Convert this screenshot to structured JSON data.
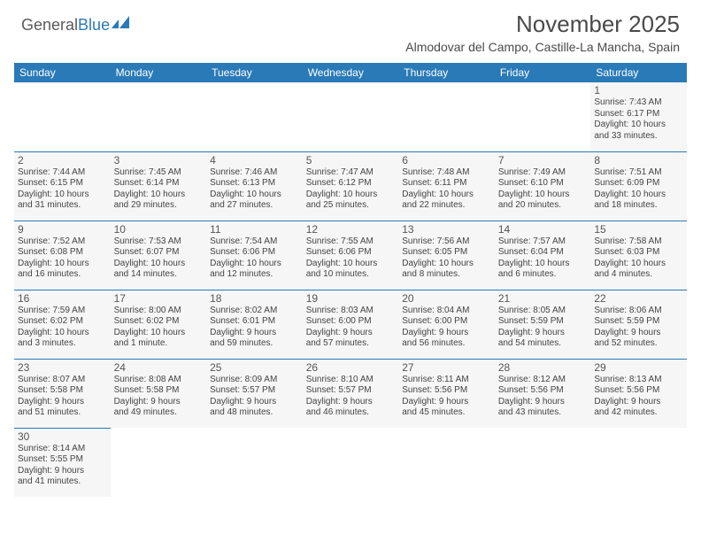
{
  "logo": {
    "text1": "General",
    "text2": "Blue"
  },
  "title": "November 2025",
  "location": "Almodovar del Campo, Castille-La Mancha, Spain",
  "colors": {
    "header_bg": "#2a7ab8",
    "header_fg": "#ffffff",
    "cell_bg": "#f6f6f6",
    "border": "#2a7ab8",
    "text": "#444444"
  },
  "day_headers": [
    "Sunday",
    "Monday",
    "Tuesday",
    "Wednesday",
    "Thursday",
    "Friday",
    "Saturday"
  ],
  "weeks": [
    [
      null,
      null,
      null,
      null,
      null,
      null,
      {
        "n": "1",
        "sr": "Sunrise: 7:43 AM",
        "ss": "Sunset: 6:17 PM",
        "d1": "Daylight: 10 hours",
        "d2": "and 33 minutes."
      }
    ],
    [
      {
        "n": "2",
        "sr": "Sunrise: 7:44 AM",
        "ss": "Sunset: 6:15 PM",
        "d1": "Daylight: 10 hours",
        "d2": "and 31 minutes."
      },
      {
        "n": "3",
        "sr": "Sunrise: 7:45 AM",
        "ss": "Sunset: 6:14 PM",
        "d1": "Daylight: 10 hours",
        "d2": "and 29 minutes."
      },
      {
        "n": "4",
        "sr": "Sunrise: 7:46 AM",
        "ss": "Sunset: 6:13 PM",
        "d1": "Daylight: 10 hours",
        "d2": "and 27 minutes."
      },
      {
        "n": "5",
        "sr": "Sunrise: 7:47 AM",
        "ss": "Sunset: 6:12 PM",
        "d1": "Daylight: 10 hours",
        "d2": "and 25 minutes."
      },
      {
        "n": "6",
        "sr": "Sunrise: 7:48 AM",
        "ss": "Sunset: 6:11 PM",
        "d1": "Daylight: 10 hours",
        "d2": "and 22 minutes."
      },
      {
        "n": "7",
        "sr": "Sunrise: 7:49 AM",
        "ss": "Sunset: 6:10 PM",
        "d1": "Daylight: 10 hours",
        "d2": "and 20 minutes."
      },
      {
        "n": "8",
        "sr": "Sunrise: 7:51 AM",
        "ss": "Sunset: 6:09 PM",
        "d1": "Daylight: 10 hours",
        "d2": "and 18 minutes."
      }
    ],
    [
      {
        "n": "9",
        "sr": "Sunrise: 7:52 AM",
        "ss": "Sunset: 6:08 PM",
        "d1": "Daylight: 10 hours",
        "d2": "and 16 minutes."
      },
      {
        "n": "10",
        "sr": "Sunrise: 7:53 AM",
        "ss": "Sunset: 6:07 PM",
        "d1": "Daylight: 10 hours",
        "d2": "and 14 minutes."
      },
      {
        "n": "11",
        "sr": "Sunrise: 7:54 AM",
        "ss": "Sunset: 6:06 PM",
        "d1": "Daylight: 10 hours",
        "d2": "and 12 minutes."
      },
      {
        "n": "12",
        "sr": "Sunrise: 7:55 AM",
        "ss": "Sunset: 6:06 PM",
        "d1": "Daylight: 10 hours",
        "d2": "and 10 minutes."
      },
      {
        "n": "13",
        "sr": "Sunrise: 7:56 AM",
        "ss": "Sunset: 6:05 PM",
        "d1": "Daylight: 10 hours",
        "d2": "and 8 minutes."
      },
      {
        "n": "14",
        "sr": "Sunrise: 7:57 AM",
        "ss": "Sunset: 6:04 PM",
        "d1": "Daylight: 10 hours",
        "d2": "and 6 minutes."
      },
      {
        "n": "15",
        "sr": "Sunrise: 7:58 AM",
        "ss": "Sunset: 6:03 PM",
        "d1": "Daylight: 10 hours",
        "d2": "and 4 minutes."
      }
    ],
    [
      {
        "n": "16",
        "sr": "Sunrise: 7:59 AM",
        "ss": "Sunset: 6:02 PM",
        "d1": "Daylight: 10 hours",
        "d2": "and 3 minutes."
      },
      {
        "n": "17",
        "sr": "Sunrise: 8:00 AM",
        "ss": "Sunset: 6:02 PM",
        "d1": "Daylight: 10 hours",
        "d2": "and 1 minute."
      },
      {
        "n": "18",
        "sr": "Sunrise: 8:02 AM",
        "ss": "Sunset: 6:01 PM",
        "d1": "Daylight: 9 hours",
        "d2": "and 59 minutes."
      },
      {
        "n": "19",
        "sr": "Sunrise: 8:03 AM",
        "ss": "Sunset: 6:00 PM",
        "d1": "Daylight: 9 hours",
        "d2": "and 57 minutes."
      },
      {
        "n": "20",
        "sr": "Sunrise: 8:04 AM",
        "ss": "Sunset: 6:00 PM",
        "d1": "Daylight: 9 hours",
        "d2": "and 56 minutes."
      },
      {
        "n": "21",
        "sr": "Sunrise: 8:05 AM",
        "ss": "Sunset: 5:59 PM",
        "d1": "Daylight: 9 hours",
        "d2": "and 54 minutes."
      },
      {
        "n": "22",
        "sr": "Sunrise: 8:06 AM",
        "ss": "Sunset: 5:59 PM",
        "d1": "Daylight: 9 hours",
        "d2": "and 52 minutes."
      }
    ],
    [
      {
        "n": "23",
        "sr": "Sunrise: 8:07 AM",
        "ss": "Sunset: 5:58 PM",
        "d1": "Daylight: 9 hours",
        "d2": "and 51 minutes."
      },
      {
        "n": "24",
        "sr": "Sunrise: 8:08 AM",
        "ss": "Sunset: 5:58 PM",
        "d1": "Daylight: 9 hours",
        "d2": "and 49 minutes."
      },
      {
        "n": "25",
        "sr": "Sunrise: 8:09 AM",
        "ss": "Sunset: 5:57 PM",
        "d1": "Daylight: 9 hours",
        "d2": "and 48 minutes."
      },
      {
        "n": "26",
        "sr": "Sunrise: 8:10 AM",
        "ss": "Sunset: 5:57 PM",
        "d1": "Daylight: 9 hours",
        "d2": "and 46 minutes."
      },
      {
        "n": "27",
        "sr": "Sunrise: 8:11 AM",
        "ss": "Sunset: 5:56 PM",
        "d1": "Daylight: 9 hours",
        "d2": "and 45 minutes."
      },
      {
        "n": "28",
        "sr": "Sunrise: 8:12 AM",
        "ss": "Sunset: 5:56 PM",
        "d1": "Daylight: 9 hours",
        "d2": "and 43 minutes."
      },
      {
        "n": "29",
        "sr": "Sunrise: 8:13 AM",
        "ss": "Sunset: 5:56 PM",
        "d1": "Daylight: 9 hours",
        "d2": "and 42 minutes."
      }
    ],
    [
      {
        "n": "30",
        "sr": "Sunrise: 8:14 AM",
        "ss": "Sunset: 5:55 PM",
        "d1": "Daylight: 9 hours",
        "d2": "and 41 minutes."
      },
      null,
      null,
      null,
      null,
      null,
      null
    ]
  ]
}
